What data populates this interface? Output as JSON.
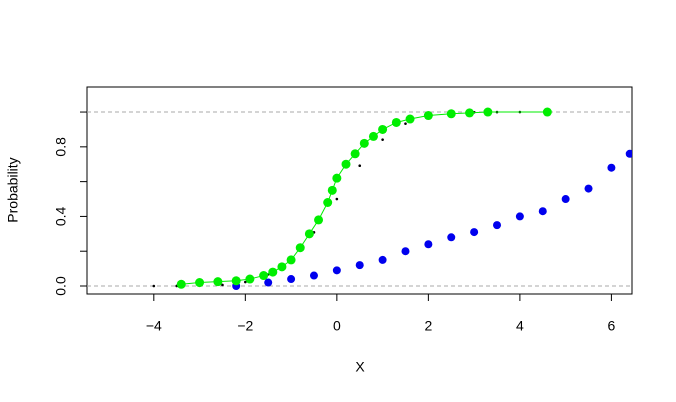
{
  "chart_data": {
    "type": "ecdf",
    "x_label": "X",
    "y_label": "Probability",
    "xlim": [
      -5.46,
      6.45
    ],
    "ylim": [
      -0.046,
      1.144
    ],
    "xticks": [
      {
        "value": -4,
        "label": "−4"
      },
      {
        "value": -2,
        "label": "−2"
      },
      {
        "value": 0,
        "label": "0"
      },
      {
        "value": 2,
        "label": "2"
      },
      {
        "value": 4,
        "label": "4"
      },
      {
        "value": 6,
        "label": "6"
      }
    ],
    "yticks": [
      {
        "value": 0,
        "label": "0.0"
      },
      {
        "value": 0.2,
        "label": null
      },
      {
        "value": 0.4,
        "label": "0.4"
      },
      {
        "value": 0.6,
        "label": null
      },
      {
        "value": 0.8,
        "label": "0.8"
      },
      {
        "value": 1.0,
        "label": null
      }
    ],
    "hlines": [
      0,
      1
    ],
    "series": [
      {
        "style": "dots",
        "color": "#000000",
        "x": [
          -4,
          -3.5,
          -3,
          -2.5,
          -2,
          -1.5,
          -1,
          -0.5,
          0,
          0.5,
          1,
          1.5,
          2,
          2.5,
          3,
          3.5,
          4
        ],
        "values": [
          0.0,
          0.0002,
          0.0013,
          0.0062,
          0.0228,
          0.0668,
          0.1587,
          0.3085,
          0.5,
          0.6915,
          0.8413,
          0.9332,
          0.9772,
          0.9938,
          0.9987,
          0.9998,
          1.0
        ]
      },
      {
        "style": "points",
        "color": "#0000ee",
        "x": [
          -2.2,
          -1.5,
          -1,
          -0.5,
          0,
          0.5,
          1,
          1.5,
          2,
          2.5,
          3,
          3.5,
          4,
          4.5,
          5,
          5.5,
          6,
          6.4
        ],
        "values": [
          0.0,
          0.02,
          0.04,
          0.06,
          0.09,
          0.12,
          0.15,
          0.2,
          0.24,
          0.28,
          0.31,
          0.35,
          0.4,
          0.43,
          0.5,
          0.56,
          0.68,
          0.76
        ]
      },
      {
        "style": "line-points",
        "color": "#00ee00",
        "x": [
          -3.4,
          -3.0,
          -2.6,
          -2.2,
          -1.9,
          -1.6,
          -1.4,
          -1.2,
          -1.0,
          -0.8,
          -0.6,
          -0.4,
          -0.2,
          -0.1,
          0,
          0.2,
          0.4,
          0.6,
          0.8,
          1.0,
          1.3,
          1.6,
          2.0,
          2.5,
          2.9,
          3.3,
          4.6
        ],
        "values": [
          0.01,
          0.02,
          0.025,
          0.03,
          0.04,
          0.06,
          0.08,
          0.11,
          0.15,
          0.22,
          0.3,
          0.38,
          0.48,
          0.55,
          0.62,
          0.7,
          0.76,
          0.82,
          0.86,
          0.9,
          0.94,
          0.96,
          0.98,
          0.99,
          0.995,
          1.0,
          1.0
        ]
      }
    ]
  }
}
